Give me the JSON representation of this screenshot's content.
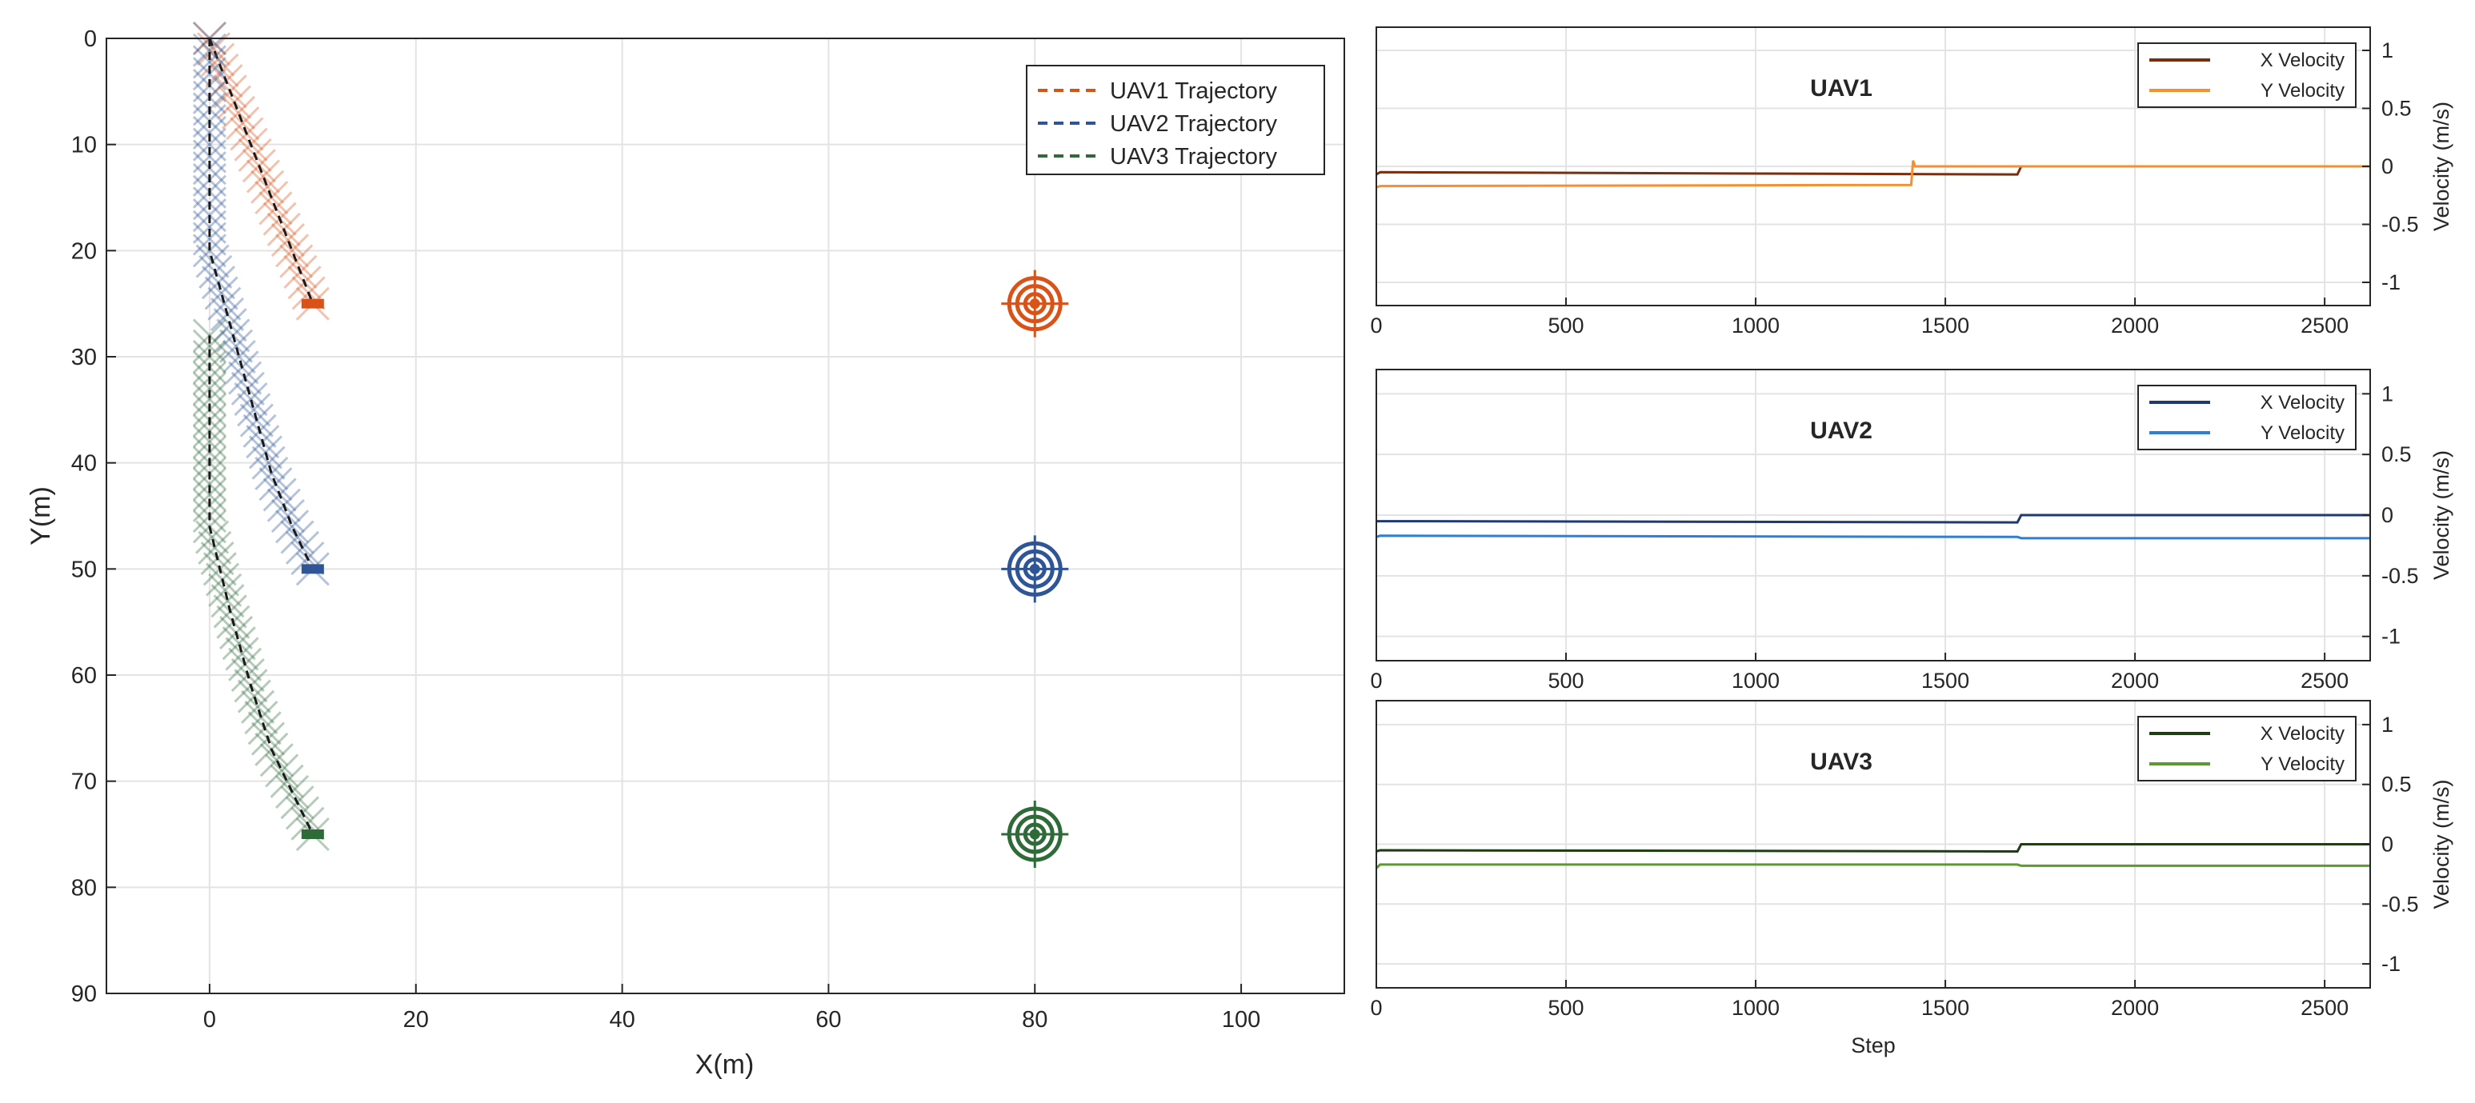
{
  "chart_data": [
    {
      "type": "scatter",
      "title": "",
      "xlabel": "X(m)",
      "ylabel": "Y(m)",
      "xlim": [
        -10,
        110
      ],
      "ylim": [
        0,
        90
      ],
      "y_reversed": true,
      "grid": true,
      "xticks": [
        0,
        20,
        40,
        60,
        80,
        100
      ],
      "yticks": [
        0,
        10,
        20,
        30,
        40,
        50,
        60,
        70,
        80,
        90
      ],
      "legend_position": "top-right",
      "series": [
        {
          "name": "UAV1 Trajectory",
          "color": "#D95319",
          "trajectory": {
            "x": [
              0,
              2,
              4,
              6,
              8,
              10
            ],
            "y": [
              0,
              5,
              10,
              15,
              20,
              25
            ]
          },
          "target": {
            "x": 80,
            "y": 25
          }
        },
        {
          "name": "UAV2 Trajectory",
          "color": "#2F5597",
          "trajectory": {
            "x": [
              0,
              0,
              0,
              2,
              4,
              6,
              8,
              10
            ],
            "y": [
              0,
              10,
              20,
              27,
              34,
              41,
              46,
              50
            ]
          },
          "target": {
            "x": 80,
            "y": 50
          }
        },
        {
          "name": "UAV3 Trajectory",
          "color": "#2E6B38",
          "trajectory": {
            "x": [
              0,
              0,
              0,
              2,
              4,
              6,
              8,
              10
            ],
            "y": [
              28,
              37,
              46,
              54,
              61,
              67,
              71,
              75
            ]
          },
          "target": {
            "x": 80,
            "y": 75
          }
        }
      ]
    },
    {
      "type": "line",
      "title": "UAV1",
      "xlabel": "",
      "ylabel": "Velocity (m/s)",
      "xlim": [
        0,
        2620
      ],
      "ylim": [
        -1.2,
        1.2
      ],
      "xticks": [
        0,
        500,
        1000,
        1500,
        2000,
        2500
      ],
      "yticks": [
        -1,
        -0.5,
        0,
        0.5,
        1
      ],
      "ytick_labels": [
        "-1",
        "-0.5",
        "0",
        "0.5",
        "1"
      ],
      "grid": true,
      "legend_position": "top-right",
      "series": [
        {
          "name": "X Velocity",
          "color": "#7A2E0E",
          "x": [
            0,
            10,
            1690,
            1700,
            2620
          ],
          "y": [
            -0.07,
            -0.05,
            -0.07,
            0,
            0
          ]
        },
        {
          "name": "Y Velocity",
          "color": "#F58F32",
          "x": [
            0,
            10,
            1410,
            1415,
            1420,
            2620
          ],
          "y": [
            -0.18,
            -0.17,
            -0.16,
            0.05,
            0,
            0
          ]
        }
      ]
    },
    {
      "type": "line",
      "title": "UAV2",
      "xlabel": "",
      "ylabel": "Velocity (m/s)",
      "xlim": [
        0,
        2620
      ],
      "ylim": [
        -1.2,
        1.2
      ],
      "xticks": [
        0,
        500,
        1000,
        1500,
        2000,
        2500
      ],
      "yticks": [
        -1,
        -0.5,
        0,
        0.5,
        1
      ],
      "ytick_labels": [
        "-1",
        "-0.5",
        "0",
        "0.5",
        "1"
      ],
      "grid": true,
      "legend_position": "top-right",
      "series": [
        {
          "name": "X Velocity",
          "color": "#1F3A6E",
          "x": [
            0,
            10,
            1690,
            1700,
            2620
          ],
          "y": [
            -0.05,
            -0.05,
            -0.06,
            0,
            0
          ]
        },
        {
          "name": "Y Velocity",
          "color": "#2F7FD0",
          "x": [
            0,
            10,
            1690,
            1700,
            2620
          ],
          "y": [
            -0.18,
            -0.17,
            -0.18,
            -0.19,
            -0.19
          ]
        }
      ]
    },
    {
      "type": "line",
      "title": "UAV3",
      "xlabel": "Step",
      "ylabel": "Velocity (m/s)",
      "xlim": [
        0,
        2620
      ],
      "ylim": [
        -1.2,
        1.2
      ],
      "xticks": [
        0,
        500,
        1000,
        1500,
        2000,
        2500
      ],
      "yticks": [
        -1,
        -0.5,
        0,
        0.5,
        1
      ],
      "ytick_labels": [
        "-1",
        "-0.5",
        "0",
        "0.5",
        "1"
      ],
      "grid": true,
      "legend_position": "top-right",
      "series": [
        {
          "name": "X Velocity",
          "color": "#1E3D12",
          "x": [
            0,
            10,
            1690,
            1700,
            2620
          ],
          "y": [
            -0.06,
            -0.05,
            -0.06,
            0,
            0
          ]
        },
        {
          "name": "Y Velocity",
          "color": "#5A9A2E",
          "x": [
            0,
            10,
            1690,
            1700,
            2620
          ],
          "y": [
            -0.2,
            -0.17,
            -0.17,
            -0.18,
            -0.18
          ]
        }
      ]
    }
  ]
}
